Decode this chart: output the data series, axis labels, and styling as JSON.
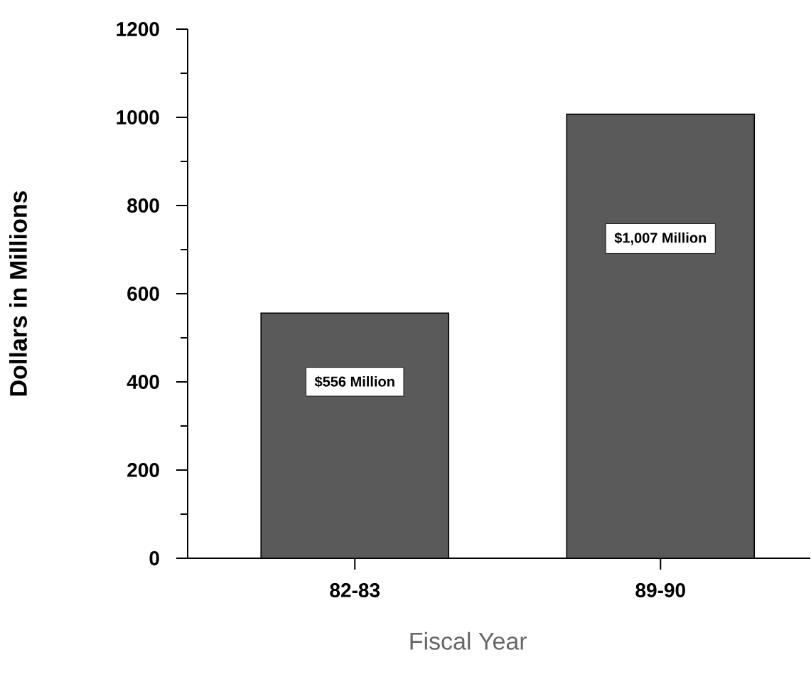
{
  "chart_data": {
    "type": "bar",
    "xlabel": "Fiscal Year",
    "ylabel": "Dollars in Millions",
    "categories": [
      "82-83",
      "89-90"
    ],
    "values": [
      556,
      1007
    ],
    "value_labels": [
      "$556 Million",
      "$1,007 Million"
    ],
    "color": "#5a5a5a",
    "ylim": [
      0,
      1200
    ],
    "yticks": [
      0,
      200,
      400,
      600,
      800,
      1000,
      1200
    ],
    "grid": false
  }
}
